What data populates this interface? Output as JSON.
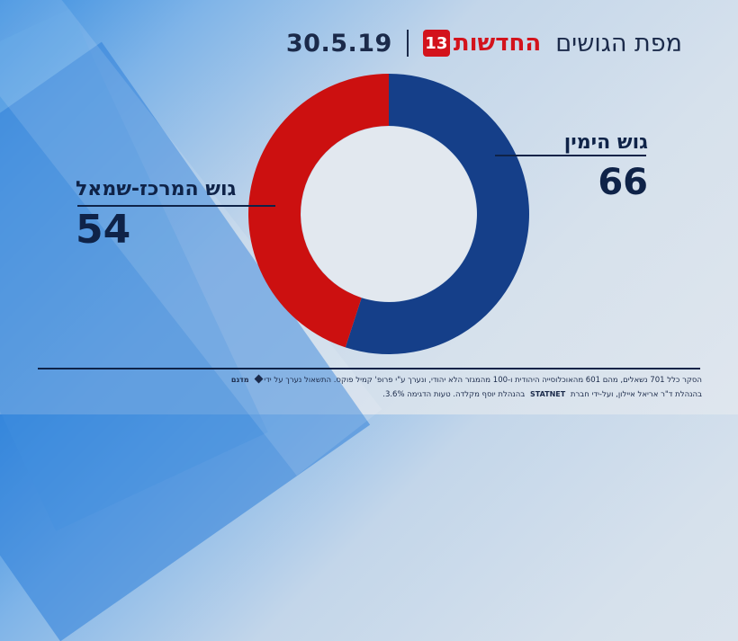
{
  "header": {
    "title": "מפת הגושים",
    "logo_text": "החדשות",
    "logo_number": "13",
    "date": "30.5.19"
  },
  "chart_data": {
    "type": "pie",
    "variant": "donut",
    "series": [
      {
        "name": "גוש הימין",
        "value": 66,
        "color": "#153f89"
      },
      {
        "name": "גוש המרכז-שמאל",
        "value": 54,
        "color": "#cc1010"
      }
    ],
    "labels": {
      "right_name": "גוש הימין",
      "right_value": "66",
      "left_name": "גוש המרכז-שמאל",
      "left_value": "54"
    }
  },
  "footnote": {
    "line1": "הסקר כלל 701 נשאלים, מהם 601 מהאוכלוסייה היהודית ו-100 מהמגזר הלא יהודי, ונערך ע\"י פרופ' קמיל פוקס. התשאול נערך על ידי",
    "brand1": "מדגם",
    "line2": "בהנהלת ד\"ר אריאל איילון, ועל-ידי חברת",
    "brand2": "STATNET",
    "line3": "בהנהלת יוסף מקלדה. טעות הדגימה 3.6%."
  },
  "colors": {
    "accent_red": "#d3131c",
    "navy": "#1b2a4a"
  }
}
